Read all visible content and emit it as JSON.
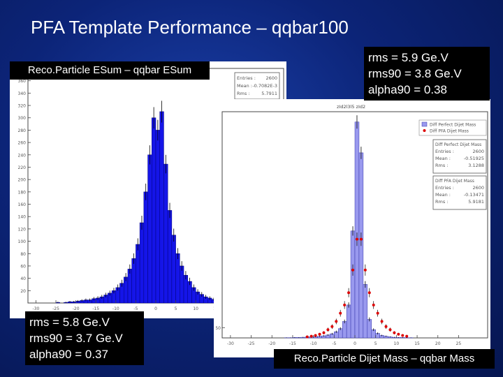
{
  "slide": {
    "title": "PFA Template Performance – qqbar100"
  },
  "left_panel": {
    "label": "Reco.Particle ESum – qqbar ESum",
    "stats_box": {
      "rows": [
        {
          "key": "Entries :",
          "value": "2600"
        },
        {
          "key": "Mean :",
          "value": "-0.7082E-3"
        },
        {
          "key": "Rms :",
          "value": "5.7911"
        }
      ]
    },
    "annotation": {
      "lines": [
        "rms = 5.8 Ge.V",
        "rms90 = 3.7 Ge.V",
        "alpha90 = 0.37"
      ]
    }
  },
  "right_panel": {
    "label": "Reco.Particle Dijet Mass – qqbar Mass",
    "histo_title": "zId2l3l5 zId2",
    "legend": [
      "Diff Perfect Dijet Mass",
      "Diff PFA Dijet Mass"
    ],
    "stats_boxes": [
      {
        "title": "Diff Perfect Dijet Mass",
        "rows": [
          {
            "key": "Entries :",
            "value": "2600"
          },
          {
            "key": "Mean :",
            "value": "-0.51925"
          },
          {
            "key": "Rms :",
            "value": "3.1288"
          }
        ]
      },
      {
        "title": "Diff PFA Dijet Mass",
        "rows": [
          {
            "key": "Entries :",
            "value": "2600"
          },
          {
            "key": "Mean :",
            "value": "-0.13471"
          },
          {
            "key": "Rms :",
            "value": "5.9181"
          }
        ]
      }
    ],
    "annotation": {
      "lines": [
        "rms = 5.9 Ge.V",
        "rms90 = 3.8 Ge.V",
        "alpha90 = 0.38"
      ]
    }
  },
  "colors": {
    "left_bar": "#1515e8",
    "right_bar": "#9999ee",
    "right_bar_edge": "#3333aa",
    "points": "#dd0000",
    "error_bar": "#000000"
  },
  "chart_data": [
    {
      "type": "bar",
      "title": "",
      "xlabel": "",
      "ylabel": "",
      "xlim": [
        -32,
        32
      ],
      "ylim": [
        0,
        380
      ],
      "x_ticks": [
        -30,
        -25,
        -20,
        -15,
        -10,
        -5,
        0,
        5,
        10,
        15,
        20,
        25
      ],
      "y_ticks": [
        20,
        40,
        60,
        80,
        100,
        120,
        140,
        160,
        180,
        200,
        220,
        240,
        260,
        280,
        300,
        320,
        340,
        360
      ],
      "bin_width": 1,
      "x": [
        -30,
        -29,
        -28,
        -27,
        -26,
        -25,
        -24,
        -23,
        -22,
        -21,
        -20,
        -19,
        -18,
        -17,
        -16,
        -15,
        -14,
        -13,
        -12,
        -11,
        -10,
        -9,
        -8,
        -7,
        -6,
        -5,
        -4,
        -3,
        -2,
        -1,
        0,
        1,
        2,
        3,
        4,
        5,
        6,
        7,
        8,
        9,
        10,
        11,
        12,
        13,
        14,
        15,
        16,
        17,
        18,
        19,
        20,
        21,
        22,
        23,
        24,
        25,
        26,
        27,
        28,
        29
      ],
      "values": [
        0,
        0,
        0,
        0,
        0,
        1,
        0,
        1,
        2,
        2,
        3,
        4,
        5,
        5,
        7,
        8,
        10,
        13,
        16,
        20,
        25,
        32,
        42,
        55,
        72,
        95,
        130,
        180,
        240,
        300,
        280,
        310,
        225,
        150,
        110,
        80,
        60,
        45,
        35,
        25,
        18,
        14,
        10,
        8,
        6,
        5,
        4,
        3,
        2,
        2,
        1,
        1,
        1,
        0,
        0,
        2,
        0,
        0,
        0,
        0
      ]
    },
    {
      "type": "bar",
      "title": "zId2l3l5 zId2",
      "xlabel": "",
      "ylabel": "",
      "xlim": [
        -32,
        32
      ],
      "ylim": [
        0,
        1100
      ],
      "x_ticks": [
        -30,
        -25,
        -20,
        -15,
        -10,
        -5,
        0,
        5,
        10,
        15,
        20,
        25
      ],
      "y_ticks": [
        50
      ],
      "bin_width": 1,
      "series": [
        {
          "name": "Diff Perfect Dijet Mass",
          "kind": "bar",
          "x": [
            -30,
            -29,
            -28,
            -27,
            -26,
            -25,
            -24,
            -23,
            -22,
            -21,
            -20,
            -19,
            -18,
            -17,
            -16,
            -15,
            -14,
            -13,
            -12,
            -11,
            -10,
            -9,
            -8,
            -7,
            -6,
            -5,
            -4,
            -3,
            -2,
            -1,
            0,
            1,
            2,
            3,
            4,
            5,
            6,
            7,
            8,
            9,
            10,
            11,
            12,
            13,
            14,
            15,
            16,
            17,
            18,
            19,
            20,
            21,
            22,
            23,
            24,
            25,
            26,
            27,
            28,
            29
          ],
          "values": [
            0,
            0,
            0,
            0,
            0,
            0,
            0,
            0,
            0,
            0,
            0,
            0,
            0,
            1,
            1,
            2,
            2,
            3,
            4,
            5,
            6,
            8,
            10,
            14,
            20,
            30,
            45,
            80,
            160,
            520,
            1050,
            900,
            260,
            90,
            40,
            22,
            12,
            8,
            5,
            3,
            2,
            2,
            1,
            1,
            0,
            0,
            0,
            0,
            0,
            0,
            0,
            0,
            0,
            0,
            0,
            0,
            0,
            0,
            0,
            0
          ]
        },
        {
          "name": "Diff PFA Dijet Mass",
          "kind": "points",
          "x": [
            -12,
            -11,
            -10,
            -9,
            -8,
            -7,
            -6,
            -5,
            -4,
            -3,
            -2,
            -1,
            0,
            1,
            2,
            3,
            4,
            5,
            6,
            7,
            8,
            9,
            10,
            11,
            12
          ],
          "values": [
            5,
            8,
            12,
            18,
            25,
            40,
            55,
            80,
            120,
            160,
            220,
            330,
            480,
            480,
            330,
            220,
            160,
            120,
            80,
            55,
            40,
            25,
            18,
            12,
            8
          ]
        }
      ]
    }
  ]
}
